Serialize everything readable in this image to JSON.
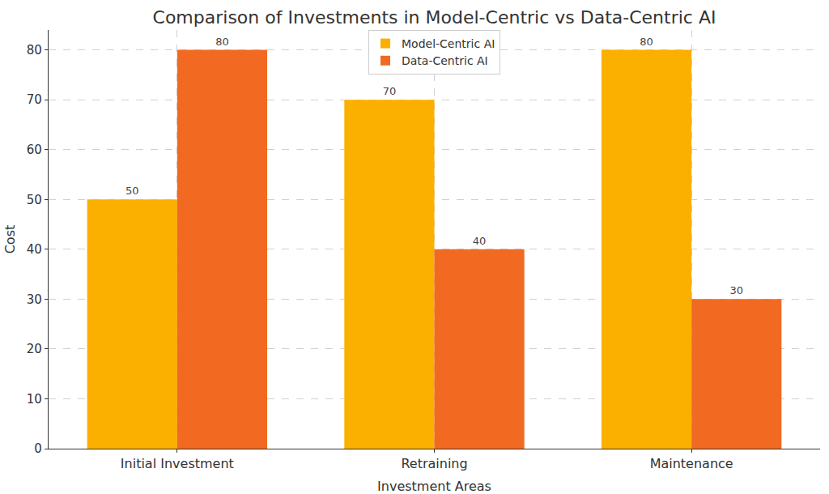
{
  "chart_data": {
    "type": "bar",
    "title": "Comparison of Investments in Model-Centric vs Data-Centric AI",
    "x_label": "Investment Areas",
    "y_label": "Cost",
    "categories": [
      "Initial Investment",
      "Retraining",
      "Maintenance"
    ],
    "series": [
      {
        "name": "Model-Centric AI",
        "color": "#fbb000",
        "values": [
          50,
          70,
          80
        ]
      },
      {
        "name": "Data-Centric AI",
        "color": "#f26a22",
        "values": [
          80,
          40,
          30
        ]
      }
    ],
    "ylim": [
      0,
      84
    ],
    "yticks": [
      0,
      10,
      20,
      30,
      40,
      50,
      60,
      70,
      80
    ],
    "grid": true,
    "legend": "top",
    "data_labels": true
  }
}
